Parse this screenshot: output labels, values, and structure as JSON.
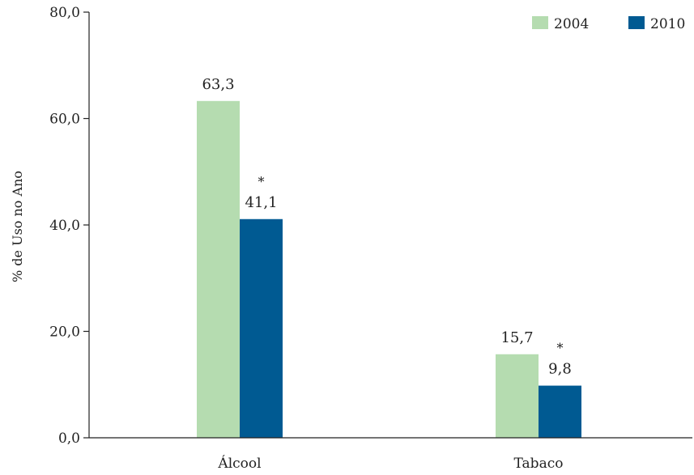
{
  "chart_data": {
    "type": "bar",
    "categories": [
      "Álcool",
      "Tabaco"
    ],
    "series": [
      {
        "name": "2004",
        "color": "#b5dcb0",
        "values": [
          63.3,
          15.7
        ],
        "value_labels": [
          "63,3",
          "15,7"
        ],
        "significance_marks": [
          "",
          ""
        ]
      },
      {
        "name": "2010",
        "color": "#005a92",
        "values": [
          41.1,
          9.8
        ],
        "value_labels": [
          "41,1",
          "9,8"
        ],
        "significance_marks": [
          "*",
          "*"
        ]
      }
    ],
    "ylabel": "% de Uso no Ano",
    "xlabel": "",
    "ylim": [
      0,
      80
    ],
    "yticks": [
      0,
      20,
      40,
      60,
      80
    ],
    "ytick_labels": [
      "0,0",
      "20,0",
      "40,0",
      "60,0",
      "80,0"
    ],
    "legend_position": "top-right",
    "grid": false
  }
}
